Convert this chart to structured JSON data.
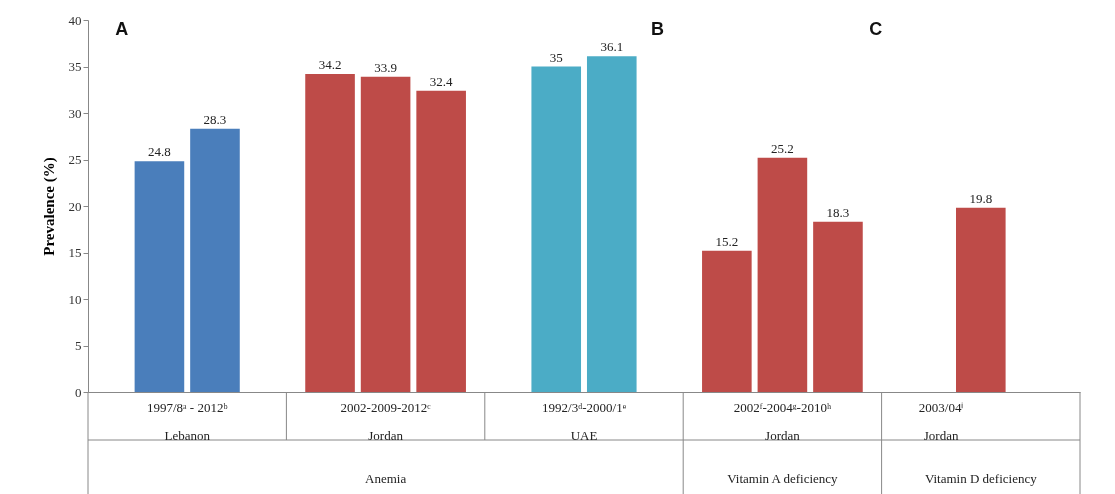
{
  "chart_data": {
    "type": "bar",
    "ylabel": "Prevalence (%)",
    "categories": [
      null,
      null,
      null,
      null,
      null,
      null,
      null,
      null,
      null,
      null,
      null
    ],
    "values": [
      24.8,
      28.3,
      34.2,
      33.9,
      32.4,
      35,
      36.1,
      15.2,
      25.2,
      18.3,
      19.8
    ],
    "colors": [
      "#4a7ebb",
      "#4a7ebb",
      "#be4b48",
      "#be4b48",
      "#be4b48",
      "#4bacc6",
      "#4bacc6",
      "#be4b48",
      "#be4b48",
      "#be4b48",
      "#be4b48"
    ],
    "ylim": [
      0,
      40
    ],
    "yticks": [
      0,
      5,
      10,
      15,
      20,
      25,
      30,
      35,
      40
    ],
    "data_labels": true,
    "annotations": [
      "A",
      "B",
      "C",
      "1997/8ᵃ - 2012ᵇ",
      "2002-2009-2012ᶜ",
      "1992/3ᵈ-2000/1ᵉ",
      "2002ᶠ-2004ᵍ-2010ʰ",
      "2003/04ⁱ",
      "Lebanon",
      "Jordan",
      "UAE",
      "Jordan",
      "Jordan",
      "Anemia",
      "Vitamin A deficiency",
      "Vitamin D deficiency"
    ]
  }
}
